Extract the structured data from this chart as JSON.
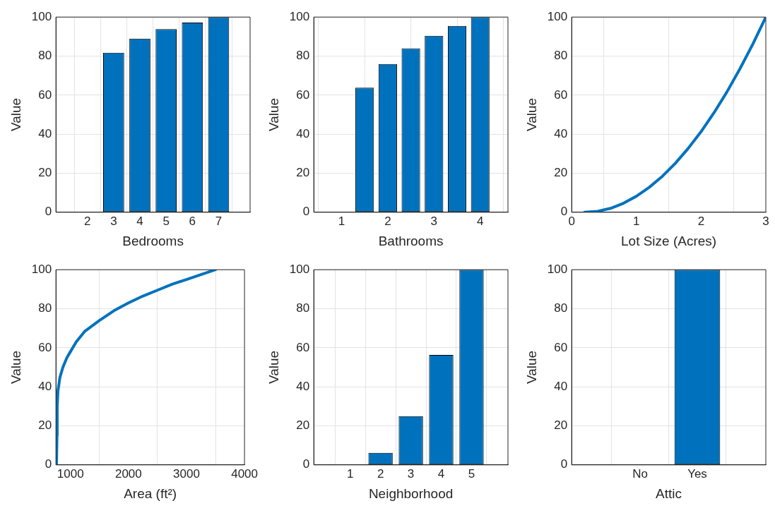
{
  "chart_data": [
    {
      "type": "bar",
      "xlabel": "Bedrooms",
      "ylabel": "Value",
      "x": [
        2,
        3,
        4,
        5,
        6,
        7
      ],
      "values": [
        0,
        81.7,
        89,
        93.8,
        97.2,
        100
      ],
      "color": "#0072bd",
      "xlim": [
        0.8,
        8.2
      ],
      "xticks": [
        2,
        3,
        4,
        5,
        6,
        7
      ],
      "ylim": [
        0,
        100
      ],
      "yticks": [
        0,
        20,
        40,
        60,
        80,
        100
      ],
      "grid": true
    },
    {
      "type": "bar",
      "xlabel": "Bathrooms",
      "ylabel": "Value",
      "x": [
        1,
        1.5,
        2,
        2.5,
        3,
        3.5,
        4
      ],
      "values": [
        0,
        63.8,
        75.9,
        84,
        90.4,
        95.5,
        100
      ],
      "color": "#0072bd",
      "xlim": [
        0.4,
        4.6
      ],
      "xticks": [
        1,
        2,
        3,
        4
      ],
      "ylim": [
        0,
        100
      ],
      "yticks": [
        0,
        20,
        40,
        60,
        80,
        100
      ],
      "grid": true
    },
    {
      "type": "line",
      "xlabel": "Lot Size (Acres)",
      "ylabel": "Value",
      "x": [
        0.2,
        0.4,
        0.6,
        0.8,
        1,
        1.2,
        1.4,
        1.6,
        1.8,
        2,
        2.2,
        2.4,
        2.6,
        2.8,
        3
      ],
      "values": [
        0,
        0.5,
        2,
        4.6,
        8.2,
        12.8,
        18.4,
        25,
        32.7,
        41.3,
        51,
        61.7,
        73.5,
        86.2,
        100
      ],
      "color": "#0072bd",
      "xlim": [
        0,
        3
      ],
      "xticks": [
        0,
        1,
        2,
        3
      ],
      "ylim": [
        0,
        100
      ],
      "yticks": [
        0,
        20,
        40,
        60,
        80,
        100
      ],
      "grid": true
    },
    {
      "type": "line",
      "xlabel": "Area (ft²)",
      "ylabel": "Value",
      "x": [
        760,
        768,
        772,
        785,
        820,
        870,
        940,
        1000,
        1100,
        1250,
        1500,
        1750,
        2000,
        2250,
        2500,
        2750,
        3000,
        3250,
        3500
      ],
      "values": [
        0,
        15,
        30,
        38,
        45,
        50,
        55,
        58,
        63,
        68.5,
        74,
        79,
        83,
        86.5,
        89.5,
        92.5,
        95,
        97.5,
        100
      ],
      "color": "#0072bd",
      "xlim": [
        750,
        4000
      ],
      "xticks": [
        1000,
        2000,
        3000,
        4000
      ],
      "ylim": [
        0,
        100
      ],
      "yticks": [
        0,
        20,
        40,
        60,
        80,
        100
      ],
      "grid": true
    },
    {
      "type": "bar",
      "xlabel": "Neighborhood",
      "ylabel": "Value",
      "x": [
        1,
        2,
        3,
        4,
        5
      ],
      "values": [
        0,
        6.2,
        25,
        56.3,
        100
      ],
      "color": "#0072bd",
      "xlim": [
        -0.2,
        6.2
      ],
      "xticks": [
        1,
        2,
        3,
        4,
        5
      ],
      "ylim": [
        0,
        100
      ],
      "yticks": [
        0,
        20,
        40,
        60,
        80,
        100
      ],
      "grid": true
    },
    {
      "type": "bar",
      "xlabel": "Attic",
      "ylabel": "Value",
      "categories": [
        "No",
        "Yes"
      ],
      "values": [
        0,
        100
      ],
      "color": "#0072bd",
      "ylim": [
        0,
        100
      ],
      "yticks": [
        0,
        20,
        40,
        60,
        80,
        100
      ],
      "grid": true
    }
  ]
}
